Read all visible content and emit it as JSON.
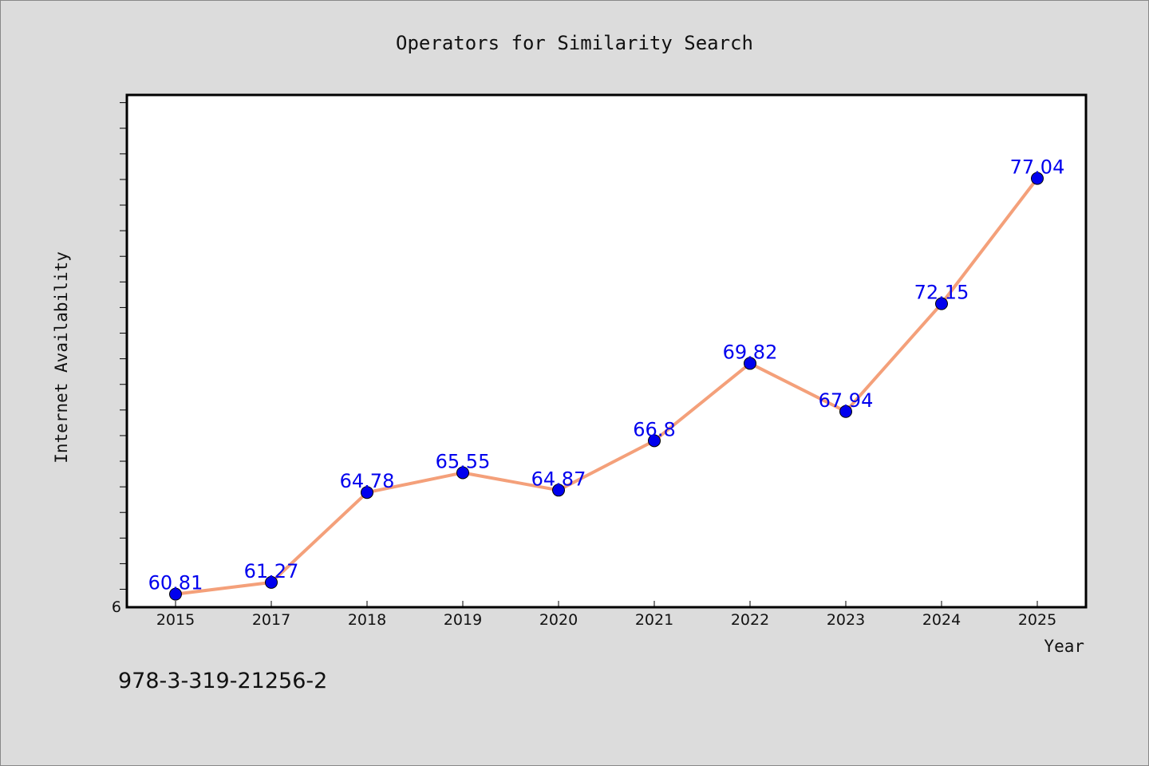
{
  "chart_data": {
    "type": "line",
    "title": "Operators for Similarity Search",
    "xlabel": "Year",
    "ylabel": "Internet Availability",
    "categories": [
      "2015",
      "2017",
      "2018",
      "2019",
      "2020",
      "2021",
      "2022",
      "2023",
      "2024",
      "2025"
    ],
    "series": [
      {
        "values": [
          60.81,
          61.27,
          64.78,
          65.55,
          64.87,
          66.8,
          69.82,
          67.94,
          72.15,
          77.04
        ],
        "data_labels": [
          "60.81",
          "61.27",
          "64.78",
          "65.55",
          "64.87",
          "66.8",
          "69.82",
          "67.94",
          "72.15",
          "77.04"
        ]
      }
    ],
    "y_tick_label": "6",
    "ylim": [
      60.3,
      80.3
    ],
    "y_minor_tick_step": 1,
    "grid": false,
    "legend": "none",
    "colors": {
      "line": "#f4a07a",
      "marker": "#0000ee",
      "data_label": "#0000ee",
      "background": "#dcdcdc",
      "plot_area": "#ffffff"
    }
  },
  "footnote": "978-3-319-21256-2"
}
